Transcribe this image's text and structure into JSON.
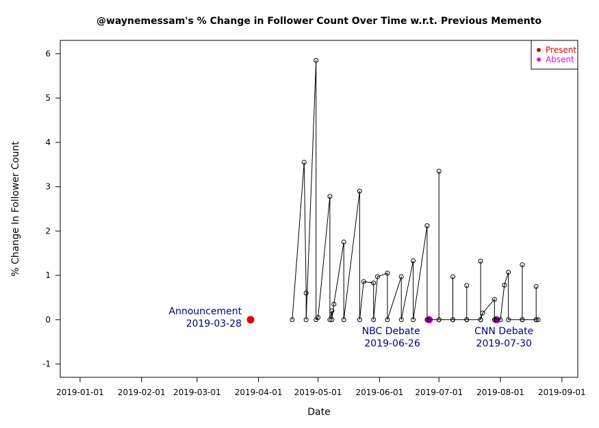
{
  "chart_data": {
    "type": "scatter",
    "title": "@waynemessam's % Change in Follower Count Over Time w.r.t. Previous Memento",
    "xlabel": "Date",
    "ylabel": "% Change In Follower Count",
    "xlim": [
      "2018-12-22",
      "2019-09-09"
    ],
    "ylim": [
      -1.3,
      6.3
    ],
    "x_ticks": [
      "2019-01-01",
      "2019-02-01",
      "2019-03-01",
      "2019-04-01",
      "2019-05-01",
      "2019-06-01",
      "2019-07-01",
      "2019-08-01",
      "2019-09-01"
    ],
    "y_ticks": [
      -1,
      0,
      1,
      2,
      3,
      4,
      5,
      6
    ],
    "grid": false,
    "legend": {
      "position": "top-right",
      "entries": [
        {
          "label": "Present",
          "color": "#e00000"
        },
        {
          "label": "Absent",
          "color": "#e010e0"
        }
      ]
    },
    "series": [
      {
        "name": "Present",
        "color": "#e00000",
        "style": "marker",
        "points": [
          {
            "x": "2019-03-28",
            "y": 0
          }
        ]
      },
      {
        "name": "Absent",
        "color": "#e010e0",
        "style": "marker",
        "points": [
          {
            "x": "2019-06-26",
            "y": 0
          },
          {
            "x": "2019-07-30",
            "y": 0
          }
        ]
      },
      {
        "name": "",
        "color": "#000000",
        "style": "line-open-circles",
        "points": [
          {
            "x": "2019-04-18",
            "y": 0
          },
          {
            "x": "2019-04-24",
            "y": 3.55
          },
          {
            "x": "2019-04-25",
            "y": 0.6
          },
          {
            "x": "2019-04-25",
            "y": 0
          },
          {
            "x": "2019-04-30",
            "y": 5.85
          },
          {
            "x": "2019-04-30",
            "y": 0
          },
          {
            "x": "2019-05-01",
            "y": 0.05
          },
          {
            "x": "2019-05-07",
            "y": 2.78
          },
          {
            "x": "2019-05-07",
            "y": 0
          },
          {
            "x": "2019-05-08",
            "y": 0.2
          },
          {
            "x": "2019-05-08",
            "y": 0
          },
          {
            "x": "2019-05-09",
            "y": 0.35
          },
          {
            "x": "2019-05-14",
            "y": 1.75
          },
          {
            "x": "2019-05-14",
            "y": 0
          },
          {
            "x": "2019-05-22",
            "y": 2.9
          },
          {
            "x": "2019-05-22",
            "y": 0
          },
          {
            "x": "2019-05-24",
            "y": 0.86
          },
          {
            "x": "2019-05-29",
            "y": 0.83
          },
          {
            "x": "2019-05-29",
            "y": 0
          },
          {
            "x": "2019-05-31",
            "y": 0.97
          },
          {
            "x": "2019-06-05",
            "y": 1.05
          },
          {
            "x": "2019-06-05",
            "y": 0
          },
          {
            "x": "2019-06-12",
            "y": 0.97
          },
          {
            "x": "2019-06-12",
            "y": 0
          },
          {
            "x": "2019-06-18",
            "y": 1.33
          },
          {
            "x": "2019-06-18",
            "y": 0
          },
          {
            "x": "2019-06-25",
            "y": 2.12
          },
          {
            "x": "2019-06-25",
            "y": 0
          },
          {
            "x": "2019-06-26",
            "y": 0
          },
          {
            "x": "2019-07-01",
            "y": 0
          },
          {
            "x": "2019-07-01",
            "y": 3.35
          },
          {
            "x": "2019-07-01",
            "y": 0
          },
          {
            "x": "2019-07-08",
            "y": 0
          },
          {
            "x": "2019-07-08",
            "y": 0.97
          },
          {
            "x": "2019-07-08",
            "y": 0
          },
          {
            "x": "2019-07-15",
            "y": 0
          },
          {
            "x": "2019-07-15",
            "y": 0.77
          },
          {
            "x": "2019-07-15",
            "y": 0
          },
          {
            "x": "2019-07-22",
            "y": 0
          },
          {
            "x": "2019-07-22",
            "y": 1.32
          },
          {
            "x": "2019-07-22",
            "y": 0
          },
          {
            "x": "2019-07-23",
            "y": 0.15
          },
          {
            "x": "2019-07-29",
            "y": 0.46
          },
          {
            "x": "2019-07-29",
            "y": 0
          },
          {
            "x": "2019-07-30",
            "y": 0
          },
          {
            "x": "2019-08-01",
            "y": 0
          },
          {
            "x": "2019-08-03",
            "y": 0.78
          },
          {
            "x": "2019-08-05",
            "y": 1.07
          },
          {
            "x": "2019-08-05",
            "y": 0
          },
          {
            "x": "2019-08-12",
            "y": 0
          },
          {
            "x": "2019-08-12",
            "y": 1.24
          },
          {
            "x": "2019-08-12",
            "y": 0
          },
          {
            "x": "2019-08-19",
            "y": 0
          },
          {
            "x": "2019-08-19",
            "y": 0.75
          },
          {
            "x": "2019-08-19",
            "y": 0
          },
          {
            "x": "2019-08-20",
            "y": 0
          }
        ]
      }
    ],
    "annotations": [
      {
        "text": [
          "Announcement",
          "2019-03-28"
        ],
        "x": "2019-03-28",
        "y": 0,
        "side": "left"
      },
      {
        "text": [
          "NBC Debate",
          "2019-06-26"
        ],
        "x": "2019-06-26",
        "y": -0.45,
        "side": "left"
      },
      {
        "text": [
          "CNN Debate",
          "2019-07-30"
        ],
        "x": "2019-07-30",
        "y": -0.45,
        "side": "center"
      }
    ]
  }
}
